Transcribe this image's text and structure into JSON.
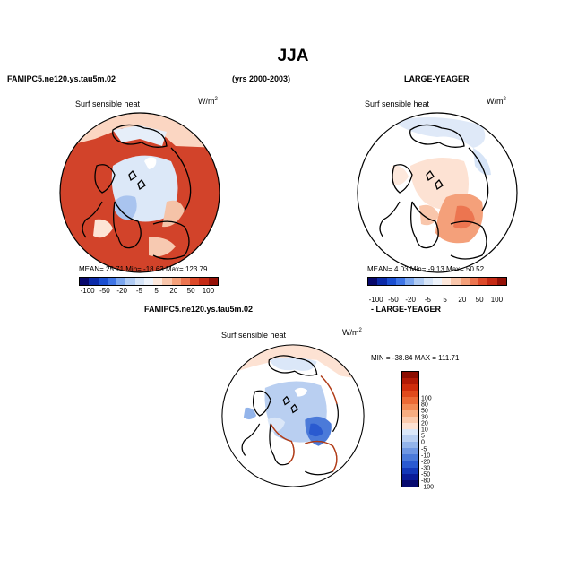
{
  "page": {
    "season": "JJA",
    "left_case": "FAMIPC5.ne120.ys.tau5m.02",
    "years": "(yrs 2000-2003)",
    "right_case": "LARGE-YEAGER",
    "diff_left_case": "FAMIPC5.ne120.ys.tau5m.02",
    "diff_right_case": "- LARGE-YEAGER"
  },
  "panels": {
    "left": {
      "variable": "Surf sensible heat",
      "units_base": "W/m",
      "units_exp": "2",
      "stats": "MEAN=   25.71   Min=  -18.63   Max=  123.79"
    },
    "right": {
      "variable": "Surf sensible heat",
      "units_base": "W/m",
      "units_exp": "2",
      "stats": "MEAN=    4.03   Min=   -9.13   Max=   50.52"
    },
    "diff": {
      "variable": "Surf sensible heat",
      "units_base": "W/m",
      "units_exp": "2",
      "stats": "MIN = -38.84  MAX = 111.71"
    }
  },
  "colorbars": {
    "top_colors": [
      "#08086b",
      "#0b2aa8",
      "#1b4fd1",
      "#3f75e6",
      "#7ba6ef",
      "#b0cbf3",
      "#d6e4f7",
      "#eef3fb",
      "#fde8dc",
      "#f9c6ab",
      "#f4a07a",
      "#ec7550",
      "#dd4a2a",
      "#c52a14",
      "#951107"
    ],
    "top_ticks": [
      "-100",
      "-50",
      "-20",
      "-5",
      "5",
      "20",
      "50",
      "100"
    ],
    "diff_colors": [
      "#8b0d00",
      "#b21a05",
      "#cf2d0c",
      "#e04a1c",
      "#ec6a35",
      "#f38b55",
      "#f8ad81",
      "#fbcbae",
      "#fde2d3",
      "#dbe7f8",
      "#b9cff1",
      "#93b4ea",
      "#6f97e2",
      "#4b7ad9",
      "#2a5ad0",
      "#1338b8",
      "#0a1c98",
      "#070b70"
    ],
    "diff_ticks": [
      "100",
      "80",
      "50",
      "30",
      "20",
      "10",
      "5",
      "0",
      "-5",
      "-10",
      "-20",
      "-30",
      "-50",
      "-80",
      "-100"
    ]
  }
}
